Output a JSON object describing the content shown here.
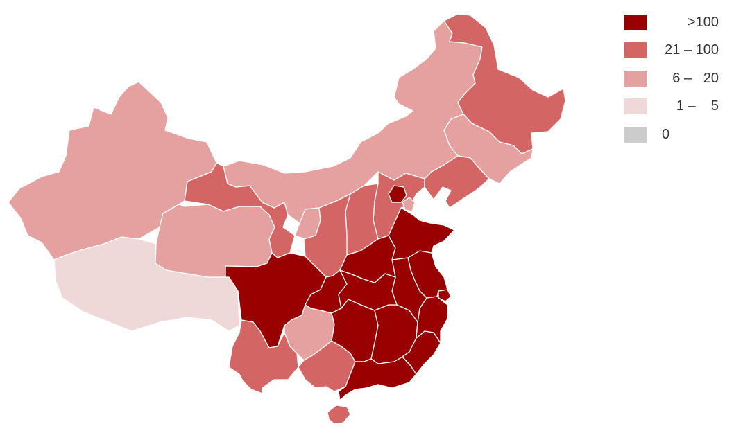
{
  "legend": {
    "items": [
      {
        "label": ">100",
        "color": "#990000"
      },
      {
        "label": "21 – 100",
        "color": "#d46565"
      },
      {
        "label": "6 –   20",
        "color": "#e5a0a0"
      },
      {
        "label": "1 –    5",
        "color": "#eed8d8"
      },
      {
        "label": "0",
        "color": "#cccccc"
      }
    ]
  },
  "regions": [
    {
      "name": "Xinjiang",
      "class": "6 – 20"
    },
    {
      "name": "Tibet",
      "class": "1 – 5"
    },
    {
      "name": "Qinghai",
      "class": "6 – 20"
    },
    {
      "name": "Gansu",
      "class": "21 – 100"
    },
    {
      "name": "Inner Mongolia",
      "class": "6 – 20"
    },
    {
      "name": "Heilongjiang",
      "class": "21 – 100"
    },
    {
      "name": "Jilin",
      "class": "6 – 20"
    },
    {
      "name": "Liaoning",
      "class": "21 – 100"
    },
    {
      "name": "Beijing",
      "class": ">100"
    },
    {
      "name": "Tianjin",
      "class": "6 – 20"
    },
    {
      "name": "Hebei",
      "class": "21 – 100"
    },
    {
      "name": "Shanxi",
      "class": "21 – 100"
    },
    {
      "name": "Ningxia",
      "class": "6 – 20"
    },
    {
      "name": "Shaanxi",
      "class": "21 – 100"
    },
    {
      "name": "Sichuan",
      "class": ">100"
    },
    {
      "name": "Chongqing",
      "class": ">100"
    },
    {
      "name": "Yunnan",
      "class": "21 – 100"
    },
    {
      "name": "Guizhou",
      "class": "6 – 20"
    },
    {
      "name": "Guangxi",
      "class": "21 – 100"
    },
    {
      "name": "Guangdong",
      "class": ">100"
    },
    {
      "name": "Hainan",
      "class": "21 – 100"
    },
    {
      "name": "Hunan",
      "class": ">100"
    },
    {
      "name": "Jiangxi",
      "class": ">100"
    },
    {
      "name": "Fujian",
      "class": ">100"
    },
    {
      "name": "Zhejiang",
      "class": ">100"
    },
    {
      "name": "Shanghai",
      "class": ">100"
    },
    {
      "name": "Jiangsu",
      "class": ">100"
    },
    {
      "name": "Anhui",
      "class": ">100"
    },
    {
      "name": "Hubei",
      "class": ">100"
    },
    {
      "name": "Henan",
      "class": ">100"
    },
    {
      "name": "Shandong",
      "class": ">100"
    }
  ]
}
